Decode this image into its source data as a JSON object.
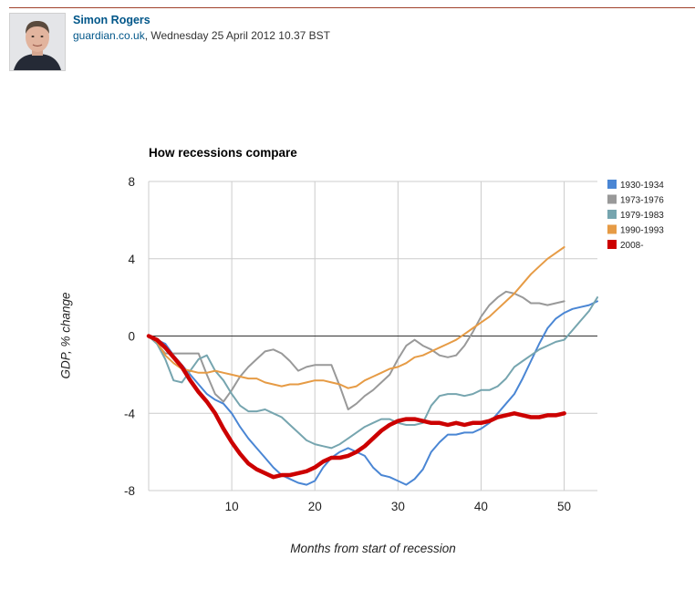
{
  "byline": {
    "author": "Simon Rogers",
    "site": "guardian.co.uk",
    "date_text": ", Wednesday 25 April 2012 10.37 BST"
  },
  "colors": {
    "rule": "#a0412b",
    "link": "#005689"
  },
  "chart_data": {
    "type": "line",
    "title": "How recessions compare",
    "xlabel": "Months from start of recession",
    "ylabel": "GDP, % change",
    "xlim": [
      0,
      54
    ],
    "ylim": [
      -8,
      8
    ],
    "x_ticks": [
      10,
      20,
      30,
      40,
      50
    ],
    "y_ticks": [
      -8,
      -4,
      0,
      4,
      8
    ],
    "grid": true,
    "legend": "right",
    "series": [
      {
        "name": "1930-1934",
        "color": "#4a86d4",
        "width": 2,
        "x": [
          0,
          2,
          3,
          5,
          7,
          8,
          9,
          10,
          11,
          12,
          13,
          14,
          15,
          16,
          17,
          18,
          19,
          20,
          21,
          22,
          23,
          24,
          25,
          26,
          27,
          28,
          29,
          30,
          31,
          32,
          33,
          34,
          35,
          36,
          37,
          38,
          39,
          40,
          41,
          42,
          43,
          44,
          45,
          46,
          47,
          48,
          49,
          50,
          51,
          52,
          53,
          54
        ],
        "y": [
          0,
          -0.4,
          -1,
          -2,
          -3,
          -3.3,
          -3.5,
          -4,
          -4.7,
          -5.3,
          -5.8,
          -6.3,
          -6.8,
          -7.2,
          -7.4,
          -7.6,
          -7.7,
          -7.5,
          -6.8,
          -6.3,
          -6,
          -5.8,
          -6,
          -6.2,
          -6.8,
          -7.2,
          -7.3,
          -7.5,
          -7.7,
          -7.4,
          -6.9,
          -6,
          -5.5,
          -5.1,
          -5.1,
          -5.0,
          -5.0,
          -4.8,
          -4.5,
          -4,
          -3.5,
          -3,
          -2.2,
          -1.3,
          -0.4,
          0.4,
          0.9,
          1.2,
          1.4,
          1.5,
          1.6,
          1.8
        ]
      },
      {
        "name": "1973-1976",
        "color": "#999999",
        "width": 2,
        "x": [
          0,
          1,
          2,
          3,
          4,
          5,
          6,
          7,
          8,
          9,
          10,
          11,
          12,
          13,
          14,
          15,
          16,
          17,
          18,
          19,
          20,
          21,
          22,
          23,
          24,
          25,
          26,
          27,
          28,
          29,
          30,
          31,
          32,
          33,
          34,
          35,
          36,
          37,
          38,
          39,
          40,
          41,
          42,
          43,
          44,
          45,
          46,
          47,
          48,
          49,
          50
        ],
        "y": [
          0,
          -0.4,
          -0.9,
          -0.9,
          -0.9,
          -0.9,
          -0.9,
          -2.0,
          -3.0,
          -3.4,
          -2.8,
          -2.1,
          -1.6,
          -1.2,
          -0.8,
          -0.7,
          -0.9,
          -1.3,
          -1.8,
          -1.6,
          -1.5,
          -1.5,
          -1.5,
          -2.6,
          -3.8,
          -3.5,
          -3.1,
          -2.8,
          -2.4,
          -2.0,
          -1.2,
          -0.5,
          -0.2,
          -0.5,
          -0.7,
          -1.0,
          -1.1,
          -1.0,
          -0.5,
          0.2,
          1.0,
          1.6,
          2.0,
          2.3,
          2.2,
          2.0,
          1.7,
          1.7,
          1.6,
          1.7,
          1.8
        ]
      },
      {
        "name": "1979-1983",
        "color": "#76a5af",
        "width": 2,
        "x": [
          0,
          1,
          2,
          3,
          4,
          5,
          6,
          7,
          8,
          9,
          10,
          11,
          12,
          13,
          14,
          15,
          16,
          17,
          18,
          19,
          20,
          21,
          22,
          23,
          24,
          25,
          26,
          27,
          28,
          29,
          30,
          31,
          32,
          33,
          34,
          35,
          36,
          37,
          38,
          39,
          40,
          41,
          42,
          43,
          44,
          45,
          46,
          47,
          48,
          49,
          50,
          51,
          52,
          53,
          54
        ],
        "y": [
          0,
          -0.4,
          -1.2,
          -2.3,
          -2.4,
          -1.8,
          -1.2,
          -1.0,
          -1.8,
          -2.3,
          -3.0,
          -3.6,
          -3.9,
          -3.9,
          -3.8,
          -4.0,
          -4.2,
          -4.6,
          -5.0,
          -5.4,
          -5.6,
          -5.7,
          -5.8,
          -5.6,
          -5.3,
          -5.0,
          -4.7,
          -4.5,
          -4.3,
          -4.3,
          -4.5,
          -4.6,
          -4.6,
          -4.5,
          -3.6,
          -3.1,
          -3.0,
          -3.0,
          -3.1,
          -3.0,
          -2.8,
          -2.8,
          -2.6,
          -2.2,
          -1.6,
          -1.3,
          -1.0,
          -0.7,
          -0.5,
          -0.3,
          -0.2,
          0.3,
          0.8,
          1.3,
          2.0
        ]
      },
      {
        "name": "1990-1993",
        "color": "#e69b45",
        "width": 2,
        "x": [
          0,
          1,
          2,
          3,
          4,
          5,
          6,
          7,
          8,
          9,
          10,
          11,
          12,
          13,
          14,
          15,
          16,
          17,
          18,
          19,
          20,
          21,
          22,
          23,
          24,
          25,
          26,
          27,
          28,
          29,
          30,
          31,
          32,
          33,
          34,
          35,
          36,
          37,
          38,
          39,
          40,
          41,
          42,
          43,
          44,
          45,
          46,
          47,
          48,
          49,
          50
        ],
        "y": [
          0,
          -0.3,
          -1.0,
          -1.4,
          -1.7,
          -1.8,
          -1.9,
          -1.9,
          -1.8,
          -1.9,
          -2.0,
          -2.1,
          -2.2,
          -2.2,
          -2.4,
          -2.5,
          -2.6,
          -2.5,
          -2.5,
          -2.4,
          -2.3,
          -2.3,
          -2.4,
          -2.5,
          -2.7,
          -2.6,
          -2.3,
          -2.1,
          -1.9,
          -1.7,
          -1.6,
          -1.4,
          -1.1,
          -1.0,
          -0.8,
          -0.6,
          -0.4,
          -0.2,
          0.1,
          0.4,
          0.7,
          1.0,
          1.4,
          1.8,
          2.2,
          2.7,
          3.2,
          3.6,
          4.0,
          4.3,
          4.6
        ]
      },
      {
        "name": "2008-",
        "color": "#cc0000",
        "width": 4.5,
        "x": [
          0,
          1,
          2,
          3,
          4,
          5,
          6,
          7,
          8,
          9,
          10,
          11,
          12,
          13,
          14,
          15,
          16,
          17,
          18,
          19,
          20,
          21,
          22,
          23,
          24,
          25,
          26,
          27,
          28,
          29,
          30,
          31,
          32,
          33,
          34,
          35,
          36,
          37,
          38,
          39,
          40,
          41,
          42,
          43,
          44,
          45,
          46,
          47,
          48,
          49,
          50
        ],
        "y": [
          0,
          -0.2,
          -0.6,
          -1.1,
          -1.6,
          -2.3,
          -2.9,
          -3.4,
          -4.0,
          -4.8,
          -5.5,
          -6.1,
          -6.6,
          -6.9,
          -7.1,
          -7.3,
          -7.2,
          -7.2,
          -7.1,
          -7.0,
          -6.8,
          -6.5,
          -6.3,
          -6.3,
          -6.2,
          -6.0,
          -5.7,
          -5.3,
          -4.9,
          -4.6,
          -4.4,
          -4.3,
          -4.3,
          -4.4,
          -4.5,
          -4.5,
          -4.6,
          -4.5,
          -4.6,
          -4.5,
          -4.5,
          -4.4,
          -4.2,
          -4.1,
          -4.0,
          -4.1,
          -4.2,
          -4.2,
          -4.1,
          -4.1,
          -4.0
        ]
      }
    ]
  }
}
